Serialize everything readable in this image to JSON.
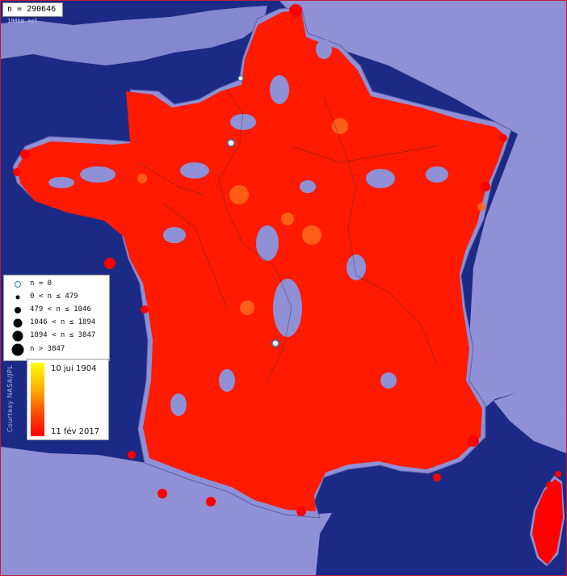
{
  "header": {
    "count_label": "n = 290646",
    "scale_label": "100km scl"
  },
  "credit": {
    "text": "Courtesy NASA/JPL"
  },
  "legend": {
    "items": [
      {
        "label": "n = 0",
        "symbol": "zero-marker"
      },
      {
        "label": "0 < n ≤ 479",
        "symbol": "dot-xs"
      },
      {
        "label": "479 < n ≤ 1046",
        "symbol": "dot-s"
      },
      {
        "label": "1046 < n ≤ 1894",
        "symbol": "dot-m"
      },
      {
        "label": "1894 < n ≤ 3847",
        "symbol": "dot-l"
      },
      {
        "label": "n > 3847",
        "symbol": "dot-xl"
      }
    ]
  },
  "color_ramp": {
    "top_label": "10 jui 1904",
    "bottom_label": "11 fév 2017",
    "colors": [
      "#ffff00",
      "#ffb000",
      "#ff4a00",
      "#ff0000"
    ]
  },
  "map": {
    "sea_color": "#1b2a85",
    "land_color": "#8f90d6",
    "marker_color": "#ff0000",
    "old_marker_color": "#ff6a1a"
  }
}
